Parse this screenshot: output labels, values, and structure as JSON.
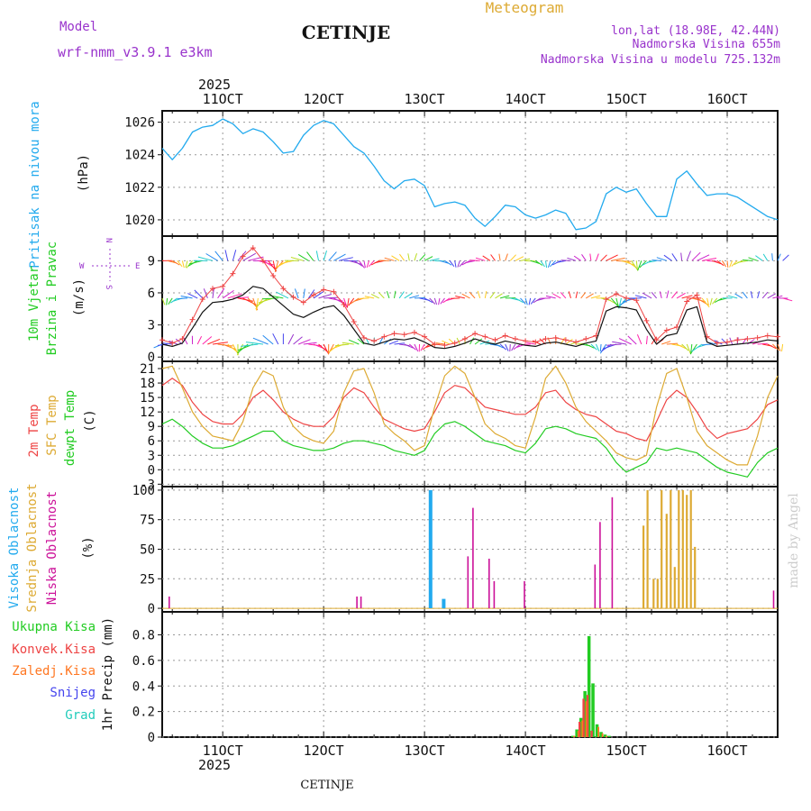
{
  "header": {
    "model_label": "Model",
    "model_name": "wrf-nmm_v3.9.1 e3km",
    "station": "CETINJE",
    "product": "Meteogram",
    "lonlat": "lon,lat (18.98E, 42.44N)",
    "elevation": "Nadmorska Visina 655m",
    "model_elevation": "Nadmorska Visina u modelu 725.132m",
    "footer_station": "CETINJE",
    "watermark": "made by Angel"
  },
  "time_axis": {
    "year": "2025",
    "range_days": [
      10.4,
      16.5
    ],
    "ticks": [
      11,
      12,
      13,
      14,
      15,
      16
    ],
    "tick_labels": [
      "11OCT",
      "12OCT",
      "13OCT",
      "14OCT",
      "15OCT",
      "16OCT"
    ]
  },
  "colors": {
    "pressure": "#22aaee",
    "temp2m": "#ee4444",
    "sfc": "#ddaa33",
    "dew": "#22cc22",
    "high_cloud": "#22aaee",
    "mid_cloud": "#ddaa33",
    "low_cloud": "#cc1199",
    "violet": "#9933cc"
  },
  "chart_data": [
    {
      "type": "line",
      "name": "pressure",
      "title": "Pritisak na nivou mora",
      "ylabel": "(hPa)",
      "ylim": [
        1019,
        1026.7
      ],
      "yticks": [
        1020,
        1022,
        1024,
        1026
      ],
      "x": [
        10.4,
        10.5,
        10.6,
        10.7,
        10.8,
        10.9,
        11.0,
        11.1,
        11.2,
        11.3,
        11.4,
        11.5,
        11.6,
        11.7,
        11.8,
        11.9,
        12.0,
        12.1,
        12.2,
        12.3,
        12.4,
        12.5,
        12.6,
        12.7,
        12.8,
        12.9,
        13.0,
        13.1,
        13.2,
        13.3,
        13.4,
        13.5,
        13.6,
        13.7,
        13.8,
        13.9,
        14.0,
        14.1,
        14.2,
        14.3,
        14.4,
        14.5,
        14.6,
        14.7,
        14.8,
        14.9,
        15.0,
        15.1,
        15.2,
        15.3,
        15.4,
        15.5,
        15.6,
        15.7,
        15.8,
        15.9,
        16.0,
        16.1,
        16.2,
        16.3,
        16.4,
        16.5
      ],
      "values": [
        1024.4,
        1023.7,
        1024.4,
        1025.4,
        1025.7,
        1025.8,
        1026.2,
        1025.9,
        1025.3,
        1025.6,
        1025.4,
        1024.8,
        1024.1,
        1024.2,
        1025.2,
        1025.8,
        1026.1,
        1025.9,
        1025.2,
        1024.5,
        1024.1,
        1023.3,
        1022.4,
        1021.9,
        1022.4,
        1022.5,
        1022.1,
        1020.8,
        1021.0,
        1021.1,
        1020.9,
        1020.1,
        1019.6,
        1020.2,
        1020.9,
        1020.8,
        1020.3,
        1020.1,
        1020.3,
        1020.6,
        1020.4,
        1019.4,
        1019.5,
        1019.9,
        1021.6,
        1022.0,
        1021.7,
        1021.9,
        1021.0,
        1020.2,
        1020.2,
        1022.5,
        1023.0,
        1022.2,
        1021.5,
        1021.6,
        1021.6,
        1021.4,
        1021.0,
        1020.6,
        1020.2,
        1020.0
      ]
    },
    {
      "type": "line",
      "name": "wind",
      "title": "10m Vjetar",
      "subtitle": "Brzina i Pravac",
      "ylabel": "(m/s)",
      "ylim": [
        -0.4,
        11.3
      ],
      "yticks": [
        0,
        3,
        6,
        9
      ],
      "compass": {
        "west": "W",
        "east": "E",
        "north": "N",
        "south": "S"
      },
      "x": [
        10.4,
        10.5,
        10.6,
        10.7,
        10.8,
        10.9,
        11.0,
        11.1,
        11.2,
        11.3,
        11.4,
        11.5,
        11.6,
        11.7,
        11.8,
        11.9,
        12.0,
        12.1,
        12.2,
        12.3,
        12.4,
        12.5,
        12.6,
        12.7,
        12.8,
        12.9,
        13.0,
        13.1,
        13.2,
        13.3,
        13.4,
        13.5,
        13.6,
        13.7,
        13.8,
        13.9,
        14.0,
        14.1,
        14.2,
        14.3,
        14.4,
        14.5,
        14.6,
        14.7,
        14.8,
        14.9,
        15.0,
        15.1,
        15.2,
        15.3,
        15.4,
        15.5,
        15.6,
        15.7,
        15.8,
        15.9,
        16.0,
        16.1,
        16.2,
        16.3,
        16.4,
        16.5
      ],
      "speed": [
        1.2,
        1.0,
        1.3,
        2.7,
        4.2,
        5.1,
        5.2,
        5.4,
        5.8,
        6.6,
        6.4,
        5.6,
        4.8,
        4.0,
        3.7,
        4.2,
        4.6,
        4.8,
        3.9,
        2.6,
        1.3,
        1.1,
        1.4,
        1.7,
        1.6,
        1.8,
        1.4,
        0.9,
        0.8,
        1.0,
        1.3,
        1.7,
        1.4,
        1.2,
        1.5,
        1.3,
        1.1,
        1.0,
        1.3,
        1.4,
        1.2,
        1.0,
        1.3,
        1.5,
        4.3,
        4.7,
        4.6,
        4.4,
        2.6,
        1.2,
        2.0,
        2.2,
        4.4,
        4.7,
        1.4,
        1.0,
        1.1,
        1.2,
        1.3,
        1.4,
        1.6,
        1.5
      ],
      "gust": [
        1.6,
        1.3,
        1.7,
        3.5,
        5.4,
        6.4,
        6.6,
        7.8,
        9.4,
        10.2,
        9.0,
        7.6,
        6.4,
        5.6,
        5.1,
        5.8,
        6.3,
        6.1,
        4.9,
        3.3,
        1.8,
        1.5,
        1.9,
        2.2,
        2.1,
        2.3,
        1.9,
        1.2,
        1.1,
        1.3,
        1.7,
        2.2,
        1.9,
        1.6,
        2.0,
        1.7,
        1.5,
        1.4,
        1.7,
        1.8,
        1.6,
        1.4,
        1.7,
        2.0,
        5.4,
        5.9,
        5.5,
        5.3,
        3.4,
        1.6,
        2.5,
        2.8,
        5.2,
        5.8,
        1.9,
        1.3,
        1.4,
        1.6,
        1.7,
        1.8,
        2.0,
        1.9
      ],
      "wind_rows": [
        9,
        5.5,
        1.2
      ]
    },
    {
      "type": "line",
      "name": "temperature",
      "title": "2m Temp",
      "subtitle": "SFC Temp",
      "subtitle2": "dewpt Temp",
      "ylabel": "(C)",
      "ylim": [
        -3.5,
        22.5
      ],
      "yticks": [
        -3,
        0,
        3,
        6,
        9,
        12,
        15,
        18,
        21
      ],
      "x": [
        10.4,
        10.5,
        10.6,
        10.7,
        10.8,
        10.9,
        11.0,
        11.1,
        11.2,
        11.3,
        11.4,
        11.5,
        11.6,
        11.7,
        11.8,
        11.9,
        12.0,
        12.1,
        12.2,
        12.3,
        12.4,
        12.5,
        12.6,
        12.7,
        12.8,
        12.9,
        13.0,
        13.1,
        13.2,
        13.3,
        13.4,
        13.5,
        13.6,
        13.7,
        13.8,
        13.9,
        14.0,
        14.1,
        14.2,
        14.3,
        14.4,
        14.5,
        14.6,
        14.7,
        14.8,
        14.9,
        15.0,
        15.1,
        15.2,
        15.3,
        15.4,
        15.5,
        15.6,
        15.7,
        15.8,
        15.9,
        16.0,
        16.1,
        16.2,
        16.3,
        16.4,
        16.5
      ],
      "series": [
        {
          "name": "2m Temp",
          "values": [
            17.5,
            19.0,
            17.5,
            14.0,
            11.5,
            10.0,
            9.5,
            9.5,
            11.5,
            15.0,
            16.5,
            14.5,
            12.0,
            10.5,
            9.5,
            9.0,
            9.0,
            11.0,
            15.0,
            17.0,
            16.0,
            13.0,
            10.5,
            9.5,
            8.5,
            8.0,
            8.5,
            12.0,
            16.0,
            17.5,
            17.0,
            15.0,
            13.0,
            12.5,
            12.0,
            11.5,
            11.5,
            13.0,
            16.0,
            16.5,
            14.0,
            12.5,
            11.5,
            11.0,
            9.5,
            8.0,
            7.5,
            6.5,
            6.0,
            10.0,
            14.5,
            16.5,
            15.0,
            12.0,
            8.5,
            6.5,
            7.5,
            8.0,
            8.5,
            10.5,
            13.5,
            14.5
          ]
        },
        {
          "name": "SFC Temp",
          "values": [
            21.0,
            21.5,
            17.0,
            12.0,
            9.0,
            7.0,
            6.5,
            6.0,
            10.0,
            17.0,
            20.5,
            19.5,
            13.0,
            9.0,
            7.0,
            6.0,
            5.5,
            8.0,
            16.0,
            20.5,
            21.0,
            16.0,
            9.5,
            7.5,
            6.0,
            4.0,
            5.0,
            13.0,
            19.5,
            21.5,
            20.0,
            15.0,
            9.5,
            7.5,
            6.5,
            5.0,
            4.5,
            11.0,
            19.0,
            21.5,
            18.0,
            13.0,
            10.0,
            8.0,
            6.0,
            3.5,
            2.5,
            2.0,
            3.0,
            13.0,
            20.0,
            21.0,
            15.0,
            8.0,
            5.0,
            3.5,
            2.0,
            1.0,
            1.0,
            7.0,
            15.0,
            19.5
          ]
        },
        {
          "name": "dewpt Temp",
          "values": [
            9.5,
            10.5,
            9.0,
            7.0,
            5.5,
            4.5,
            4.5,
            5.0,
            6.0,
            7.0,
            8.0,
            8.0,
            6.0,
            5.0,
            4.5,
            4.0,
            4.0,
            4.5,
            5.5,
            6.0,
            6.0,
            5.5,
            5.0,
            4.0,
            3.5,
            3.0,
            4.0,
            7.5,
            9.5,
            10.0,
            9.0,
            7.5,
            6.0,
            5.5,
            5.0,
            4.0,
            3.5,
            5.5,
            8.5,
            9.0,
            8.5,
            7.5,
            7.0,
            6.5,
            4.5,
            1.5,
            -0.5,
            0.5,
            1.5,
            4.5,
            4.0,
            4.5,
            4.0,
            3.5,
            2.0,
            0.5,
            -0.5,
            -1.0,
            -1.5,
            1.5,
            3.5,
            4.5
          ]
        }
      ]
    },
    {
      "type": "bar",
      "name": "clouds",
      "title": "Visoka Oblacnost",
      "subtitle": "Srednja Oblacnost",
      "subtitle2": "Niska Oblacnost",
      "ylabel": "(%)",
      "ylim": [
        -3,
        103
      ],
      "yticks": [
        0,
        25,
        50,
        75,
        100
      ],
      "series": [
        {
          "name": "Visoka Oblacnost",
          "points": [
            [
              13.06,
              100
            ],
            [
              13.19,
              8
            ]
          ]
        },
        {
          "name": "Srednja Oblacnost",
          "points": [
            [
              15.17,
              70
            ],
            [
              15.21,
              100
            ],
            [
              15.27,
              25
            ],
            [
              15.31,
              25
            ],
            [
              15.35,
              100
            ],
            [
              15.4,
              80
            ],
            [
              15.44,
              100
            ],
            [
              15.48,
              35
            ],
            [
              15.52,
              100
            ],
            [
              15.56,
              100
            ],
            [
              15.6,
              96
            ],
            [
              15.64,
              100
            ],
            [
              15.68,
              52
            ]
          ]
        },
        {
          "name": "Niska Oblacnost",
          "points": [
            [
              10.47,
              10
            ],
            [
              12.33,
              10
            ],
            [
              12.37,
              10
            ],
            [
              13.43,
              44
            ],
            [
              13.48,
              85
            ],
            [
              13.64,
              42
            ],
            [
              13.69,
              23
            ],
            [
              13.99,
              23
            ],
            [
              14.69,
              37
            ],
            [
              14.74,
              73
            ],
            [
              14.86,
              94
            ],
            [
              16.46,
              15
            ]
          ]
        }
      ]
    },
    {
      "type": "bar",
      "name": "precipitation",
      "title": "Ukupna Kisa",
      "subtitle": "Konvek.Kisa",
      "subtitle2": "Zaledj.Kisa",
      "subtitle3": "Snijeg",
      "subtitle4": "Grad",
      "ylabel": "1hr Precip (mm)",
      "ylim": [
        0,
        0.98
      ],
      "yticks": [
        0,
        0.2,
        0.4,
        0.6,
        0.8
      ],
      "ytick_labels": [
        "0",
        "0.2",
        "0.4",
        "0.6",
        "0.8"
      ],
      "series": [
        {
          "name": "Ukupna Kisa",
          "points": [
            [
              14.47,
              0.01
            ],
            [
              14.51,
              0.06
            ],
            [
              14.55,
              0.15
            ],
            [
              14.59,
              0.36
            ],
            [
              14.63,
              0.79
            ],
            [
              14.67,
              0.42
            ],
            [
              14.71,
              0.1
            ],
            [
              14.75,
              0.04
            ],
            [
              14.79,
              0.02
            ],
            [
              14.83,
              0.01
            ]
          ]
        },
        {
          "name": "Konvek.Kisa",
          "points": [
            [
              14.55,
              0.12
            ],
            [
              14.59,
              0.3
            ],
            [
              14.63,
              0.33
            ],
            [
              14.67,
              0.05
            ]
          ]
        },
        {
          "name": "Zaledj.Kisa",
          "points": [
            [
              14.47,
              0.01
            ],
            [
              14.51,
              0.05
            ],
            [
              14.55,
              0.13
            ],
            [
              14.59,
              0.28
            ],
            [
              14.71,
              0.08
            ],
            [
              14.75,
              0.03
            ],
            [
              14.79,
              0.01
            ]
          ]
        }
      ]
    }
  ]
}
